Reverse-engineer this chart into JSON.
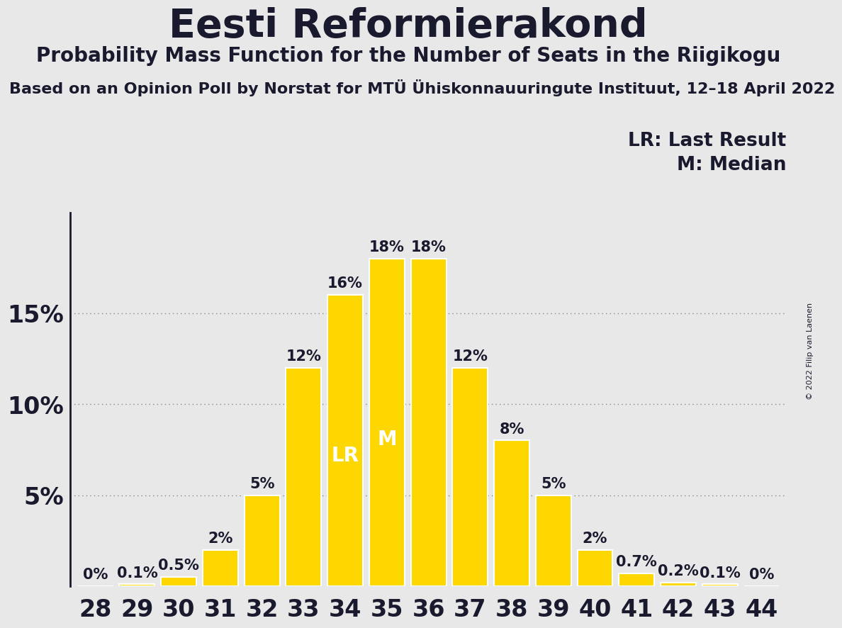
{
  "title": "Eesti Reformierakond",
  "subtitle": "Probability Mass Function for the Number of Seats in the Riigikogu",
  "source_line": "Based on an Opinion Poll by Norstat for MTÜ Ühiskonnauuringute Instituut, 12–18 April 2022",
  "copyright": "© 2022 Filip van Laenen",
  "seats": [
    28,
    29,
    30,
    31,
    32,
    33,
    34,
    35,
    36,
    37,
    38,
    39,
    40,
    41,
    42,
    43,
    44
  ],
  "probabilities": [
    0.0,
    0.1,
    0.5,
    2.0,
    5.0,
    12.0,
    16.0,
    18.0,
    18.0,
    12.0,
    8.0,
    5.0,
    2.0,
    0.7,
    0.2,
    0.1,
    0.0
  ],
  "bar_color": "#FFD700",
  "bar_edge_color": "#FFFFFF",
  "background_color": "#E8E8E8",
  "last_result_seat": 34,
  "median_seat": 35,
  "lr_label": "LR",
  "m_label": "M",
  "legend_lr": "LR: Last Result",
  "legend_m": "M: Median",
  "ytick_labels": [
    "5%",
    "10%",
    "15%"
  ],
  "ytick_values": [
    5,
    10,
    15
  ],
  "ylim": [
    0,
    20.5
  ],
  "title_fontsize": 40,
  "subtitle_fontsize": 20,
  "source_fontsize": 16,
  "bar_label_fontsize": 15,
  "axis_tick_fontsize": 24,
  "legend_fontsize": 19,
  "inbar_fontsize": 20,
  "text_color": "#1a1a2e",
  "grid_color": "#888888",
  "copyright_fontsize": 8
}
